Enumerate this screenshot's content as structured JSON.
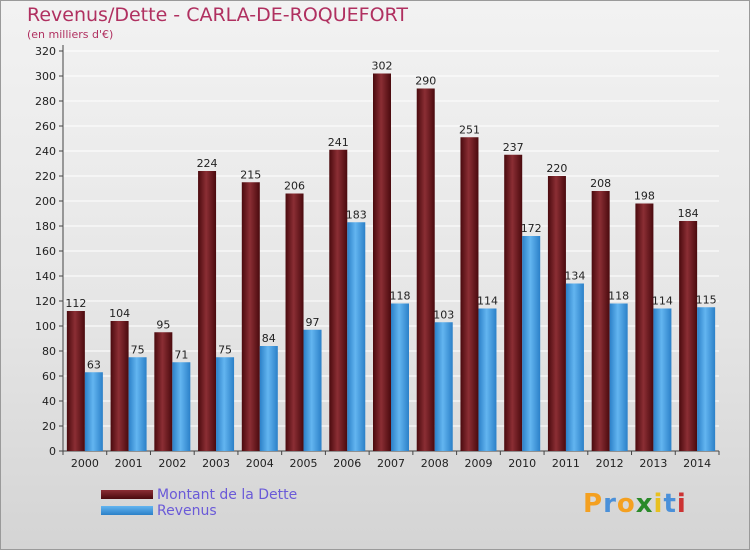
{
  "title": "Revenus/Dette - CARLA-DE-ROQUEFORT",
  "subtitle": "(en milliers d'€)",
  "logo": {
    "letters": [
      "P",
      "r",
      "o",
      "x",
      "i",
      "t",
      "i"
    ],
    "colors": [
      "#f4a020",
      "#4a90d9",
      "#f4a020",
      "#2a8a2a",
      "#e8c020",
      "#4a90d9",
      "#cc3333"
    ]
  },
  "colors": {
    "debt_top": "#8b2e34",
    "debt_bottom": "#4a0a0e",
    "rev_top": "#63b5f0",
    "rev_bottom": "#2b80c8"
  },
  "chart_data": {
    "type": "bar",
    "title": "Revenus/Dette - CARLA-DE-ROQUEFORT",
    "ylabel": "(en milliers d'€)",
    "categories": [
      "2000",
      "2001",
      "2002",
      "2003",
      "2004",
      "2005",
      "2006",
      "2007",
      "2008",
      "2009",
      "2010",
      "2011",
      "2012",
      "2013",
      "2014"
    ],
    "series": [
      {
        "name": "Montant de la Dette",
        "values": [
          112,
          104,
          95,
          224,
          215,
          206,
          241,
          302,
          290,
          251,
          237,
          220,
          208,
          198,
          184
        ]
      },
      {
        "name": "Revenus",
        "values": [
          63,
          75,
          71,
          75,
          84,
          97,
          183,
          118,
          103,
          114,
          172,
          134,
          118,
          114,
          115
        ]
      }
    ],
    "ylim": [
      0,
      320
    ],
    "yticks": [
      0,
      20,
      40,
      60,
      80,
      100,
      120,
      140,
      160,
      180,
      200,
      220,
      240,
      260,
      280,
      300,
      320
    ],
    "grid": true,
    "legend": "bottom-left"
  }
}
